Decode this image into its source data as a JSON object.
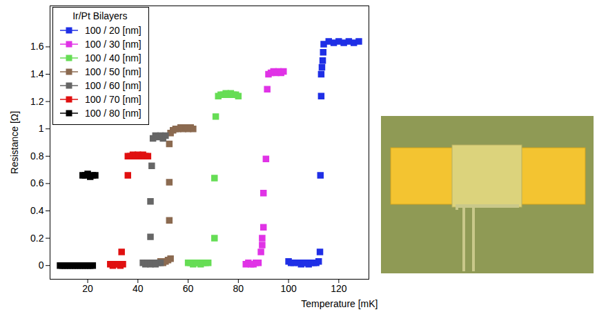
{
  "chart_data": {
    "type": "scatter",
    "legend_title": "Ir/Pt Bilayers",
    "xlabel": "Temperature [mK]",
    "ylabel": "Resistance [Ω]",
    "xlim": [
      5,
      132
    ],
    "ylim": [
      -0.1,
      1.9
    ],
    "xticks": [
      20,
      40,
      60,
      80,
      100,
      120
    ],
    "yticks": [
      0,
      0.2,
      0.4,
      0.6,
      0.8,
      1,
      1.2,
      1.4,
      1.6
    ],
    "grid": false,
    "legend": "top-left",
    "marker": "square",
    "series": [
      {
        "name": "100 / 20 [nm]",
        "color": "#1f2fe6",
        "x": [
          100,
          101,
          102,
          104,
          105,
          106,
          107,
          108,
          109,
          110,
          111,
          112,
          112.5,
          112.7,
          113,
          113,
          113.3,
          113.6,
          113.8,
          114,
          116,
          118,
          120,
          122,
          124,
          126,
          128
        ],
        "values": [
          0.03,
          0.02,
          0.02,
          0.02,
          0.01,
          0.02,
          0.02,
          0.01,
          0.02,
          0.02,
          0.02,
          0.03,
          0.1,
          0.66,
          1.24,
          1.4,
          1.45,
          1.5,
          1.56,
          1.62,
          1.64,
          1.63,
          1.64,
          1.63,
          1.64,
          1.63,
          1.64
        ]
      },
      {
        "name": "100 / 30 [nm]",
        "color": "#e033e6",
        "x": [
          83,
          84,
          85,
          86,
          87,
          88,
          89,
          89.5,
          89.5,
          90,
          90,
          91,
          91.5,
          92,
          93,
          94,
          95,
          96,
          97,
          98
        ],
        "values": [
          0.01,
          0.02,
          0.01,
          0.01,
          0.02,
          0.02,
          0.1,
          0.2,
          0.15,
          0.28,
          0.53,
          0.78,
          1.29,
          1.4,
          1.41,
          1.42,
          1.41,
          1.42,
          1.41,
          1.42
        ]
      },
      {
        "name": "100 / 40 [nm]",
        "color": "#66dd55",
        "x": [
          60,
          61,
          62,
          63,
          64,
          65,
          66,
          67,
          68,
          70.5,
          70.5,
          71,
          72,
          73,
          74,
          75,
          76,
          77,
          78,
          79,
          80
        ],
        "values": [
          0.02,
          0.02,
          0.01,
          0.02,
          0.02,
          0.01,
          0.02,
          0.02,
          0.02,
          0.2,
          0.64,
          1.09,
          1.24,
          1.25,
          1.25,
          1.26,
          1.25,
          1.26,
          1.25,
          1.25,
          1.24
        ]
      },
      {
        "name": "100 / 50 [nm]",
        "color": "#8b6a50",
        "x": [
          49,
          50,
          51,
          52,
          53,
          52.5,
          52.5,
          52.5,
          53,
          54,
          55,
          56,
          57,
          58,
          59,
          60,
          61,
          62
        ],
        "values": [
          0.03,
          0.02,
          0.03,
          0.04,
          0.05,
          0.33,
          0.61,
          0.89,
          0.97,
          0.99,
          1,
          1,
          1.01,
          1,
          1.01,
          1,
          1.01,
          1
        ]
      },
      {
        "name": "100 / 60 [nm]",
        "color": "#666666",
        "x": [
          42,
          43,
          44,
          45,
          46,
          47,
          48,
          49,
          45,
          45,
          45.5,
          46,
          47,
          48,
          49,
          50,
          51
        ],
        "values": [
          0.02,
          0.01,
          0.02,
          0.01,
          0.02,
          0.01,
          0.02,
          0.02,
          0.21,
          0.47,
          0.73,
          0.93,
          0.95,
          0.94,
          0.95,
          0.93,
          0.95
        ]
      },
      {
        "name": "100 / 70 [nm]",
        "color": "#e01010",
        "x": [
          29,
          30,
          31,
          32,
          33,
          34,
          33.5,
          36,
          36,
          37,
          38,
          39,
          40,
          41,
          42,
          43,
          44
        ],
        "values": [
          0.01,
          0,
          0.01,
          0.01,
          0,
          0.01,
          0.1,
          0.66,
          0.8,
          0.8,
          0.81,
          0.8,
          0.81,
          0.8,
          0.81,
          0.8,
          0.8
        ]
      },
      {
        "name": "100 / 80 [nm]",
        "color": "#000000",
        "x": [
          9,
          10,
          11,
          12,
          13,
          14,
          15,
          16,
          17,
          18,
          19,
          20,
          21,
          22,
          18,
          19,
          20,
          21,
          22,
          23
        ],
        "values": [
          0,
          0,
          0,
          0,
          0,
          0,
          0,
          0,
          0,
          0,
          0,
          0,
          0,
          0,
          0.66,
          0.66,
          0.67,
          0.65,
          0.66,
          0.66
        ]
      }
    ]
  }
}
